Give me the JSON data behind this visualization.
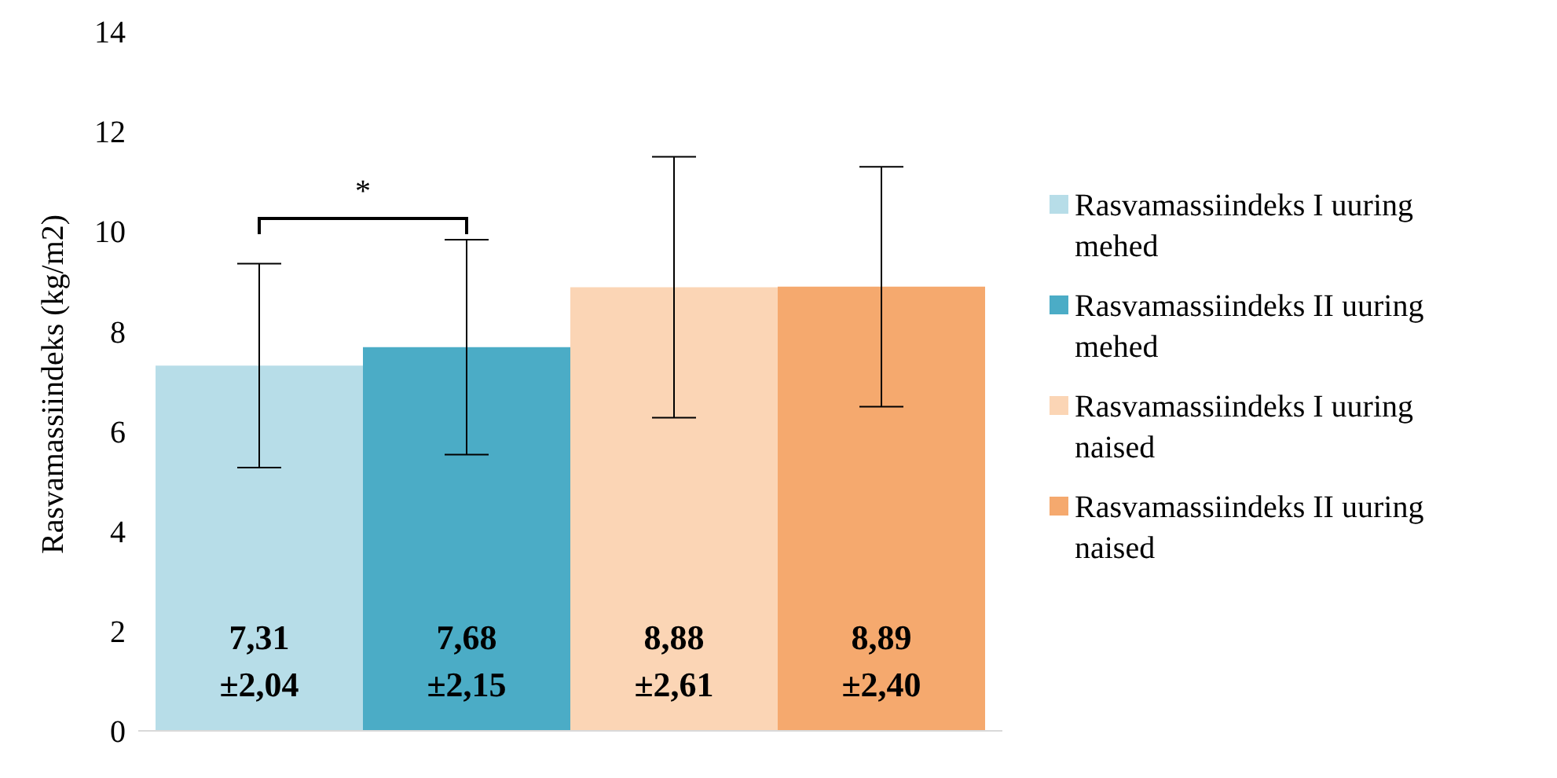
{
  "chart_data": {
    "type": "bar",
    "categories": [
      null
    ],
    "series": [
      {
        "name": "Rasvamassiindeks I uuring mehed",
        "color": "#b7dde8",
        "values": [
          7.31
        ],
        "errors": [
          2.04
        ],
        "value_labels": [
          "7,31\n±2,04"
        ]
      },
      {
        "name": "Rasvamassiindeks II uuring mehed",
        "color": "#4bacc6",
        "values": [
          7.68
        ],
        "errors": [
          2.15
        ],
        "value_labels": [
          "7,68\n±2,15"
        ]
      },
      {
        "name": "Rasvamassiindeks I uuring naised",
        "color": "#fbd5b5",
        "values": [
          8.88
        ],
        "errors": [
          2.61
        ],
        "value_labels": [
          "8,88\n±2,61"
        ]
      },
      {
        "name": "Rasvamassiindeks II uuring naised",
        "color": "#f5a96e",
        "values": [
          8.89
        ],
        "errors": [
          2.4
        ],
        "value_labels": [
          "8,89\n±2,40"
        ]
      }
    ],
    "ylabel": "Rasvamassiindeks  (kg/m2)",
    "ylim": [
      0,
      14
    ],
    "yticks": [
      0,
      2,
      4,
      6,
      8,
      10,
      12,
      14
    ],
    "tick_labels": "y",
    "legend": "right",
    "annotations": [
      "*"
    ]
  }
}
